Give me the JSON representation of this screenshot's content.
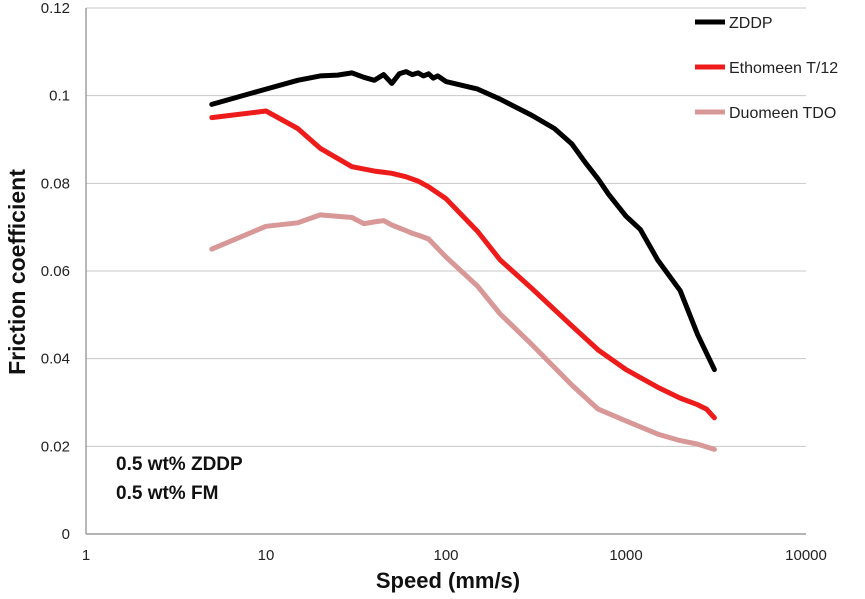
{
  "chart_data": {
    "type": "line",
    "title": "",
    "xlabel": "Speed (mm/s)",
    "ylabel": "Friction coefficient",
    "xscale": "log",
    "xlim": [
      1,
      10000
    ],
    "ylim": [
      0,
      0.12
    ],
    "x_ticks": [
      1,
      10,
      100,
      1000,
      10000
    ],
    "x_tick_labels": [
      "1",
      "10",
      "100",
      "1000",
      "10000"
    ],
    "y_ticks": [
      0,
      0.02,
      0.04,
      0.06,
      0.08,
      0.1,
      0.12
    ],
    "y_tick_labels": [
      "0",
      "0.02",
      "0.04",
      "0.06",
      "0.08",
      "0.1",
      "0.12"
    ],
    "grid": "horizontal",
    "legend_position": "top-right",
    "annotations": [
      "0.5 wt% ZDDP",
      "0.5 wt% FM"
    ],
    "series": [
      {
        "name": "ZDDP",
        "color": "#000000",
        "x": [
          5,
          10,
          15,
          20,
          25,
          30,
          35,
          40,
          45,
          50,
          55,
          60,
          65,
          70,
          75,
          80,
          85,
          90,
          100,
          150,
          200,
          300,
          400,
          500,
          600,
          700,
          800,
          1000,
          1200,
          1500,
          2000,
          2500,
          3100
        ],
        "y": [
          0.098,
          0.1015,
          0.1035,
          0.1045,
          0.1047,
          0.1052,
          0.1042,
          0.1035,
          0.1048,
          0.1028,
          0.105,
          0.1055,
          0.1048,
          0.1052,
          0.1045,
          0.105,
          0.104,
          0.1045,
          0.1032,
          0.1015,
          0.0992,
          0.0955,
          0.0925,
          0.089,
          0.0845,
          0.081,
          0.0775,
          0.0725,
          0.0695,
          0.0625,
          0.0555,
          0.0455,
          0.0375
        ]
      },
      {
        "name": "Ethomeen T/12",
        "color": "#ee1b1b",
        "x": [
          5,
          10,
          15,
          20,
          30,
          40,
          50,
          60,
          70,
          80,
          100,
          150,
          200,
          300,
          500,
          700,
          1000,
          1500,
          2000,
          2500,
          2800,
          3100
        ],
        "y": [
          0.095,
          0.0965,
          0.0925,
          0.088,
          0.0838,
          0.0828,
          0.0823,
          0.0815,
          0.0805,
          0.0792,
          0.0765,
          0.069,
          0.0625,
          0.056,
          0.0475,
          0.042,
          0.0375,
          0.0335,
          0.031,
          0.0295,
          0.0285,
          0.0265
        ]
      },
      {
        "name": "Duomeen TDO",
        "color": "#d99898",
        "x": [
          5,
          10,
          15,
          20,
          30,
          35,
          40,
          45,
          50,
          55,
          60,
          65,
          70,
          80,
          100,
          150,
          200,
          300,
          500,
          700,
          1000,
          1500,
          2000,
          2500,
          3100
        ],
        "y": [
          0.065,
          0.0702,
          0.071,
          0.0728,
          0.0722,
          0.0708,
          0.0712,
          0.0715,
          0.0705,
          0.0698,
          0.0692,
          0.0686,
          0.0682,
          0.0673,
          0.0632,
          0.0565,
          0.0502,
          0.0432,
          0.034,
          0.0285,
          0.0258,
          0.0228,
          0.0213,
          0.0205,
          0.0193
        ]
      }
    ]
  }
}
